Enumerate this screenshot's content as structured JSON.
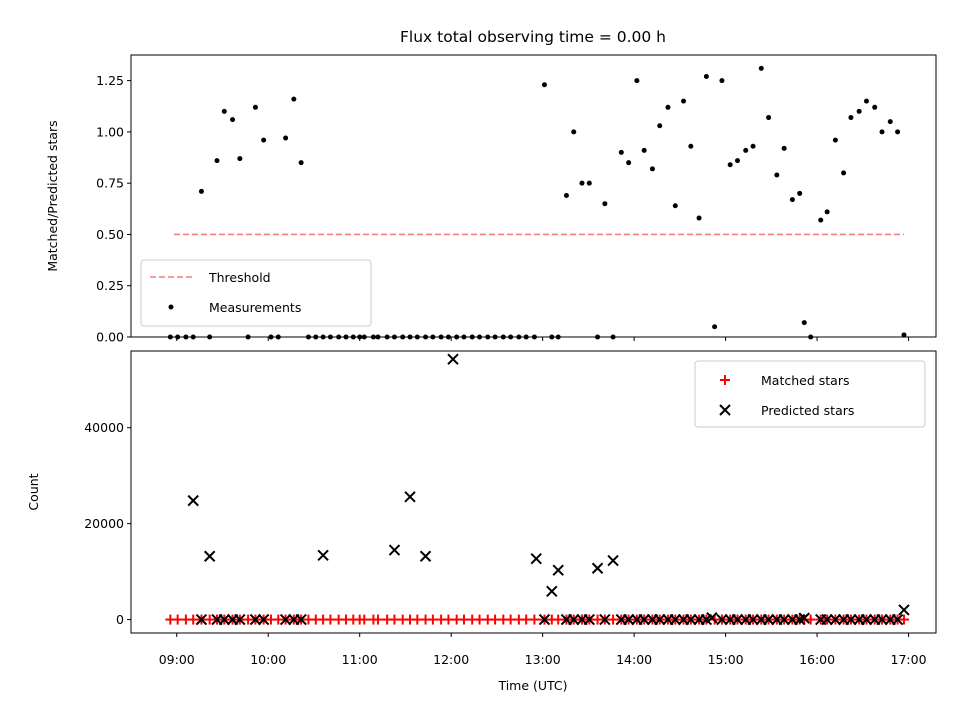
{
  "chart_data": [
    {
      "type": "scatter",
      "title": "Flux total observing time = 0.00 h",
      "xlabel": "",
      "ylabel": "Matched/Predicted stars",
      "ylim": [
        0,
        1.375
      ],
      "xlim_hours": [
        8.5,
        17.3
      ],
      "x_unit": "hours UTC",
      "yticks": [
        0.0,
        0.25,
        0.5,
        0.75,
        1.0,
        1.25
      ],
      "yticklabels": [
        "0.00",
        "0.25",
        "0.50",
        "0.75",
        "1.00",
        "1.25"
      ],
      "xticks": [
        9,
        10,
        11,
        12,
        13,
        14,
        15,
        16,
        17
      ],
      "xticklabels": [
        "09:00",
        "10:00",
        "11:00",
        "12:00",
        "13:00",
        "14:00",
        "15:00",
        "16:00",
        "17:00"
      ],
      "grid": false,
      "legend_position": "lower-left",
      "series": [
        {
          "name": "Threshold",
          "style": "dashed-line",
          "color": "#f08080",
          "x": [
            8.97,
            16.95
          ],
          "y": [
            0.5,
            0.5
          ]
        },
        {
          "name": "Measurements",
          "style": "dot",
          "color": "#000000",
          "x": [
            8.93,
            9.01,
            9.1,
            9.18,
            9.27,
            9.36,
            9.44,
            9.52,
            9.61,
            9.69,
            9.78,
            9.86,
            9.95,
            10.03,
            10.11,
            10.19,
            10.28,
            10.36,
            10.44,
            10.52,
            10.6,
            10.68,
            10.77,
            10.85,
            10.93,
            11.0,
            11.05,
            11.15,
            11.2,
            11.3,
            11.38,
            11.47,
            11.55,
            11.63,
            11.72,
            11.8,
            11.89,
            11.97,
            12.06,
            12.14,
            12.23,
            12.31,
            12.4,
            12.48,
            12.57,
            12.65,
            12.74,
            12.82,
            12.91,
            13.02,
            13.1,
            13.17,
            13.26,
            13.34,
            13.43,
            13.51,
            13.6,
            13.68,
            13.77,
            13.86,
            13.94,
            14.03,
            14.11,
            14.2,
            14.28,
            14.37,
            14.45,
            14.54,
            14.62,
            14.71,
            14.79,
            14.88,
            14.96,
            15.05,
            15.13,
            15.22,
            15.3,
            15.39,
            15.47,
            15.56,
            15.64,
            15.73,
            15.81,
            15.86,
            15.93,
            16.04,
            16.11,
            16.2,
            16.29,
            16.37,
            16.46,
            16.54,
            16.63,
            16.71,
            16.8,
            16.88,
            16.95
          ],
          "y": [
            0,
            0,
            0,
            0,
            0.71,
            0,
            0.86,
            1.1,
            1.06,
            0.87,
            0,
            1.12,
            0.96,
            0,
            0,
            0.97,
            1.16,
            0.85,
            0,
            0,
            0,
            0,
            0,
            0,
            0,
            0,
            0,
            0,
            0,
            0,
            0,
            0,
            0,
            0,
            0,
            0,
            0,
            0,
            0,
            0,
            0,
            0,
            0,
            0,
            0,
            0,
            0,
            0,
            0,
            1.23,
            0,
            0,
            0.69,
            1.0,
            0.75,
            0.75,
            0,
            0.65,
            0,
            0.9,
            0.85,
            1.25,
            0.91,
            0.82,
            1.03,
            1.12,
            0.64,
            1.15,
            0.93,
            0.58,
            1.27,
            0.05,
            1.25,
            0.84,
            0.86,
            0.91,
            0.93,
            1.31,
            1.07,
            0.79,
            0.92,
            0.67,
            0.7,
            0.07,
            0,
            0.57,
            0.61,
            0.96,
            0.8,
            1.07,
            1.1,
            1.15,
            1.12,
            1.0,
            1.05,
            1.0,
            0.01
          ]
        }
      ]
    },
    {
      "type": "scatter",
      "title": "",
      "xlabel": "Time (UTC)",
      "ylabel": "Count",
      "ylim": [
        -2800,
        56000
      ],
      "xlim_hours": [
        8.5,
        17.3
      ],
      "x_unit": "hours UTC",
      "yticks": [
        0,
        20000,
        40000
      ],
      "yticklabels": [
        "0",
        "20000",
        "40000"
      ],
      "xticks": [
        9,
        10,
        11,
        12,
        13,
        14,
        15,
        16,
        17
      ],
      "xticklabels": [
        "09:00",
        "10:00",
        "11:00",
        "12:00",
        "13:00",
        "14:00",
        "15:00",
        "16:00",
        "17:00"
      ],
      "grid": false,
      "legend_position": "top-right",
      "series": [
        {
          "name": "Matched stars",
          "style": "plus",
          "color": "#ff0000",
          "x": [
            8.93,
            9.01,
            9.1,
            9.18,
            9.27,
            9.36,
            9.44,
            9.52,
            9.61,
            9.69,
            9.78,
            9.86,
            9.95,
            10.03,
            10.11,
            10.19,
            10.28,
            10.36,
            10.44,
            10.52,
            10.6,
            10.68,
            10.77,
            10.85,
            10.93,
            11.0,
            11.05,
            11.15,
            11.2,
            11.3,
            11.38,
            11.47,
            11.55,
            11.63,
            11.72,
            11.8,
            11.89,
            11.97,
            12.06,
            12.14,
            12.23,
            12.31,
            12.4,
            12.48,
            12.57,
            12.65,
            12.74,
            12.82,
            12.91,
            13.02,
            13.1,
            13.17,
            13.26,
            13.34,
            13.43,
            13.51,
            13.6,
            13.68,
            13.77,
            13.86,
            13.94,
            14.03,
            14.11,
            14.2,
            14.28,
            14.37,
            14.45,
            14.54,
            14.62,
            14.71,
            14.79,
            14.88,
            14.96,
            15.05,
            15.13,
            15.22,
            15.3,
            15.39,
            15.47,
            15.56,
            15.64,
            15.73,
            15.81,
            15.86,
            15.93,
            16.04,
            16.11,
            16.2,
            16.29,
            16.37,
            16.46,
            16.54,
            16.63,
            16.71,
            16.8,
            16.88,
            16.95
          ],
          "y": [
            0,
            0,
            0,
            0,
            0,
            0,
            0,
            0,
            0,
            0,
            0,
            0,
            0,
            0,
            0,
            0,
            0,
            0,
            0,
            0,
            0,
            0,
            0,
            0,
            0,
            0,
            0,
            0,
            0,
            0,
            0,
            0,
            0,
            0,
            0,
            0,
            0,
            0,
            0,
            0,
            0,
            0,
            0,
            0,
            0,
            0,
            0,
            0,
            0,
            0,
            0,
            0,
            0,
            0,
            0,
            0,
            0,
            0,
            0,
            0,
            0,
            0,
            0,
            0,
            0,
            0,
            0,
            0,
            0,
            0,
            0,
            0,
            0,
            0,
            0,
            0,
            0,
            0,
            0,
            0,
            0,
            0,
            0,
            0,
            0,
            0,
            0,
            0,
            0,
            0,
            0,
            0,
            0,
            0,
            0,
            0,
            0
          ]
        },
        {
          "name": "Predicted stars",
          "style": "x",
          "color": "#000000",
          "x": [
            9.18,
            9.27,
            9.36,
            9.44,
            9.52,
            9.61,
            9.69,
            9.86,
            9.95,
            10.19,
            10.28,
            10.36,
            10.6,
            11.38,
            11.55,
            11.72,
            12.02,
            12.93,
            13.02,
            13.1,
            13.17,
            13.26,
            13.34,
            13.43,
            13.51,
            13.6,
            13.68,
            13.77,
            13.86,
            13.94,
            14.03,
            14.11,
            14.2,
            14.28,
            14.37,
            14.45,
            14.54,
            14.62,
            14.71,
            14.79,
            14.85,
            14.96,
            15.05,
            15.13,
            15.22,
            15.3,
            15.39,
            15.47,
            15.56,
            15.64,
            15.73,
            15.81,
            15.86,
            16.04,
            16.11,
            16.2,
            16.29,
            16.37,
            16.46,
            16.54,
            16.63,
            16.71,
            16.8,
            16.88,
            16.95
          ],
          "y": [
            24800,
            0,
            13200,
            0,
            0,
            0,
            0,
            0,
            0,
            0,
            0,
            0,
            13400,
            14500,
            25600,
            13200,
            54300,
            12700,
            0,
            5900,
            10300,
            0,
            0,
            0,
            0,
            10700,
            0,
            12300,
            0,
            0,
            0,
            0,
            0,
            0,
            0,
            0,
            0,
            0,
            0,
            0,
            400,
            0,
            0,
            0,
            0,
            0,
            0,
            0,
            0,
            0,
            0,
            0,
            300,
            0,
            0,
            0,
            0,
            0,
            0,
            0,
            0,
            0,
            0,
            0,
            2000
          ]
        }
      ]
    }
  ]
}
